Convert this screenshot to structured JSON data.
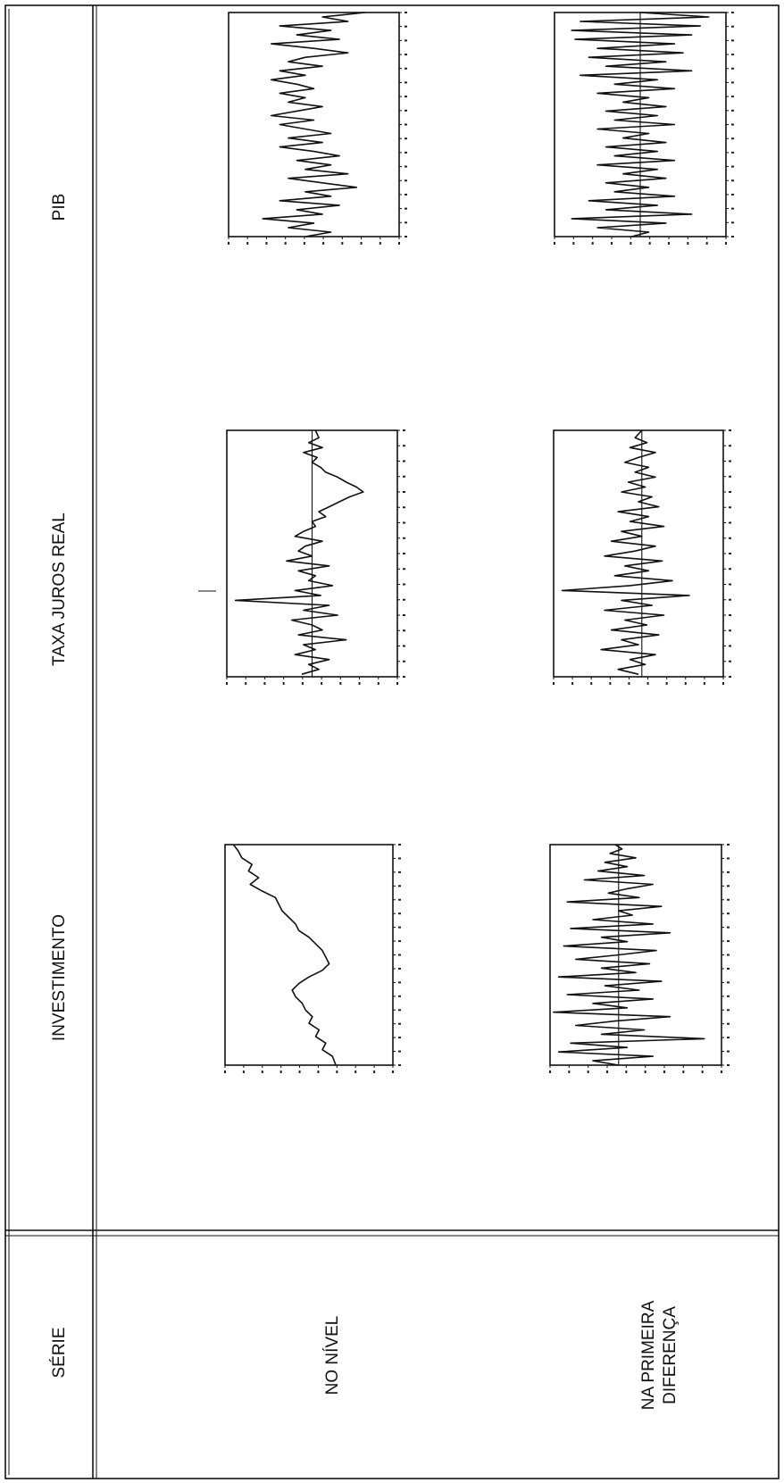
{
  "table": {
    "header_serie": "SÉRIE",
    "col_investimento": "INVESTIMENTO",
    "col_taxa_juros": "TAXA JUROS REAL",
    "col_pib": "PIB",
    "row_nivel": "NO NÍVEL",
    "row_diferenca_1": "NA PRIMEIRA",
    "row_diferenca_2": "DIFERENÇA"
  },
  "chart_data": [
    {
      "type": "line",
      "name": "investimento-nivel",
      "title": "",
      "xlabel": "",
      "ylabel": "",
      "xlim": [
        0,
        100
      ],
      "ylim": [
        0,
        100
      ],
      "zero_line": false,
      "grid": false,
      "x": [
        0,
        3,
        6,
        9,
        12,
        15,
        18,
        21,
        24,
        27,
        30,
        33,
        36,
        39,
        42,
        45,
        48,
        51,
        54,
        57,
        60,
        63,
        66,
        69,
        72,
        75,
        78,
        81,
        84,
        87,
        90,
        93,
        96,
        100
      ],
      "values": [
        95,
        92,
        90,
        84,
        86,
        80,
        85,
        78,
        70,
        68,
        66,
        62,
        58,
        56,
        50,
        46,
        42,
        40,
        38,
        42,
        50,
        56,
        60,
        58,
        54,
        52,
        48,
        50,
        44,
        46,
        40,
        42,
        36,
        34
      ]
    },
    {
      "type": "line",
      "name": "juros-nivel",
      "title": "",
      "xlabel": "",
      "ylabel": "",
      "xlim": [
        0,
        100
      ],
      "ylim": [
        0,
        100
      ],
      "zero_line": true,
      "zero_value": 50,
      "grid": false,
      "x": [
        0,
        3,
        5,
        7,
        9,
        11,
        13,
        15,
        17,
        19,
        21,
        23,
        25,
        27,
        29,
        31,
        33,
        35,
        37,
        39,
        41,
        43,
        45,
        47,
        49,
        51,
        53,
        55,
        57,
        59,
        61,
        63,
        65,
        67,
        69,
        71,
        73,
        75,
        77,
        79,
        81,
        83,
        85,
        87,
        89,
        91,
        93,
        95,
        97,
        99
      ],
      "values": [
        48,
        46,
        52,
        44,
        55,
        47,
        50,
        45,
        42,
        35,
        30,
        24,
        20,
        28,
        34,
        40,
        46,
        42,
        50,
        48,
        55,
        60,
        44,
        54,
        58,
        50,
        65,
        40,
        58,
        48,
        52,
        38,
        60,
        45,
        95,
        40,
        55,
        35,
        62,
        50,
        44,
        58,
        30,
        55,
        48,
        60,
        40,
        52,
        46,
        56
      ]
    },
    {
      "type": "line",
      "name": "pib-nivel",
      "title": "",
      "xlabel": "",
      "ylabel": "",
      "xlim": [
        0,
        100
      ],
      "ylim": [
        0,
        100
      ],
      "zero_line": false,
      "grid": false,
      "x": [
        0,
        2,
        4,
        6,
        8,
        10,
        12,
        14,
        16,
        18,
        20,
        22,
        24,
        26,
        28,
        30,
        32,
        34,
        36,
        38,
        40,
        42,
        44,
        46,
        48,
        50,
        52,
        54,
        56,
        58,
        60,
        62,
        64,
        66,
        68,
        70,
        72,
        74,
        76,
        78,
        80,
        82,
        84,
        86,
        88,
        90,
        92,
        94,
        96,
        98,
        100
      ],
      "values": [
        20,
        45,
        30,
        70,
        40,
        60,
        35,
        75,
        50,
        30,
        55,
        65,
        45,
        70,
        55,
        75,
        60,
        50,
        70,
        55,
        65,
        45,
        60,
        75,
        50,
        70,
        55,
        40,
        65,
        45,
        70,
        50,
        35,
        60,
        40,
        55,
        30,
        65,
        45,
        25,
        55,
        40,
        70,
        35,
        60,
        45,
        80,
        50,
        65,
        40,
        55
      ]
    },
    {
      "type": "line",
      "name": "investimento-diferenca",
      "title": "",
      "xlabel": "",
      "ylabel": "",
      "xlim": [
        0,
        100
      ],
      "ylim": [
        0,
        100
      ],
      "zero_line": true,
      "zero_value": 60,
      "grid": false,
      "x": [
        0,
        2,
        4,
        6,
        8,
        10,
        12,
        14,
        16,
        18,
        20,
        22,
        24,
        26,
        28,
        30,
        32,
        34,
        36,
        38,
        40,
        42,
        44,
        46,
        48,
        50,
        52,
        54,
        56,
        58,
        60,
        62,
        64,
        66,
        68,
        70,
        72,
        74,
        76,
        78,
        80,
        82,
        84,
        86,
        88,
        90,
        92,
        94,
        96,
        98,
        100
      ],
      "values": [
        62,
        58,
        65,
        50,
        68,
        55,
        72,
        45,
        80,
        40,
        55,
        66,
        48,
        90,
        35,
        60,
        52,
        75,
        40,
        88,
        30,
        70,
        55,
        92,
        38,
        60,
        85,
        42,
        70,
        50,
        95,
        35,
        68,
        48,
        90,
        40,
        75,
        55,
        98,
        30,
        62,
        85,
        45,
        70,
        10,
        88,
        55,
        95,
        40,
        75,
        60
      ]
    },
    {
      "type": "line",
      "name": "juros-diferenca",
      "title": "",
      "xlabel": "",
      "ylabel": "",
      "xlim": [
        0,
        100
      ],
      "ylim": [
        0,
        100
      ],
      "zero_line": true,
      "zero_value": 48,
      "grid": false,
      "x": [
        0,
        3,
        5,
        7,
        9,
        11,
        13,
        15,
        17,
        19,
        21,
        23,
        25,
        27,
        29,
        31,
        33,
        35,
        37,
        39,
        41,
        43,
        45,
        47,
        49,
        51,
        53,
        55,
        57,
        59,
        61,
        63,
        65,
        67,
        69,
        71,
        73,
        75,
        77,
        79,
        81,
        83,
        85,
        87,
        89,
        91,
        93,
        95,
        97,
        99
      ],
      "values": [
        48,
        52,
        45,
        55,
        40,
        50,
        58,
        44,
        52,
        40,
        56,
        46,
        60,
        42,
        50,
        38,
        62,
        44,
        55,
        35,
        60,
        48,
        66,
        40,
        52,
        70,
        36,
        58,
        44,
        64,
        30,
        55,
        95,
        20,
        60,
        42,
        70,
        35,
        58,
        45,
        66,
        38,
        60,
        50,
        72,
        40,
        55,
        46,
        62,
        50
      ]
    },
    {
      "type": "line",
      "name": "pib-diferenca",
      "title": "",
      "xlabel": "",
      "ylabel": "",
      "xlim": [
        0,
        100
      ],
      "ylim": [
        0,
        100
      ],
      "zero_line": true,
      "zero_value": 50,
      "grid": false,
      "x": [
        0,
        2,
        4,
        6,
        8,
        10,
        12,
        14,
        16,
        18,
        20,
        22,
        24,
        26,
        28,
        30,
        32,
        34,
        36,
        38,
        40,
        42,
        44,
        46,
        48,
        50,
        52,
        54,
        56,
        58,
        60,
        62,
        64,
        66,
        68,
        70,
        72,
        74,
        76,
        78,
        80,
        82,
        84,
        86,
        88,
        90,
        92,
        94,
        96,
        98,
        100
      ],
      "values": [
        50,
        10,
        85,
        15,
        90,
        20,
        88,
        30,
        75,
        25,
        80,
        35,
        70,
        20,
        85,
        40,
        65,
        30,
        75,
        45,
        60,
        35,
        70,
        40,
        65,
        30,
        75,
        45,
        60,
        35,
        70,
        40,
        65,
        30,
        75,
        40,
        60,
        35,
        70,
        45,
        65,
        30,
        80,
        40,
        70,
        20,
        90,
        35,
        75,
        45,
        55
      ]
    }
  ]
}
